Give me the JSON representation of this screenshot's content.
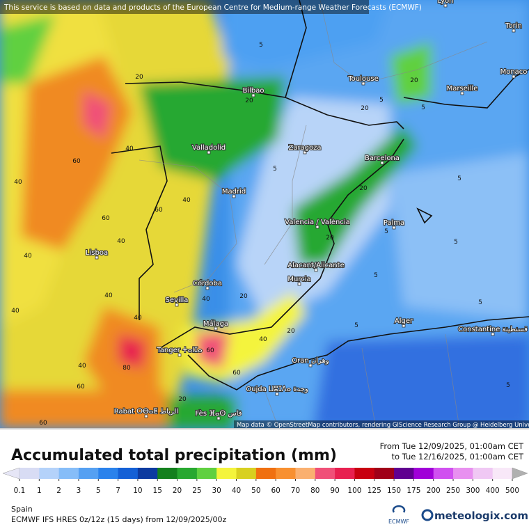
{
  "notice": "This service is based on data and products of the European Centre for Medium-range Weather Forecasts (ECMWF)",
  "attribution": "Map data © OpenStreetMap contributors, rendering GIScience Research Group @ Heidelberg University",
  "cities": [
    "Lyon",
    "Torin",
    "Monaco",
    "Toulouse",
    "Marseille",
    "Bilbao",
    "Valladolid",
    "Zaragoza",
    "Barcelona",
    "Madrid",
    "Valencia / València",
    "Palma",
    "Lisboa",
    "Alacant/Alicante",
    "Murcia",
    "Córdoba",
    "Sevilla",
    "Málaga",
    "Tanger ⵜⴰⵏⵊⴰ",
    "Oran وهران",
    "Alger",
    "Constantine قسنطينة",
    "Oujda ⵡⵓⵊⴷⴰ وجدة",
    "Rabat ⵔⴱⴰⵟ الرباط",
    "Fès ⴼⴰⵙ فاس"
  ],
  "contour_labels": [
    5,
    20,
    20,
    40,
    60,
    40,
    60,
    40,
    40,
    60,
    40,
    5,
    5,
    20,
    20,
    5,
    5,
    5,
    20,
    5,
    5,
    40,
    80,
    40,
    60,
    60,
    40,
    20,
    5,
    5,
    20,
    40,
    40,
    20,
    60,
    60,
    5,
    20,
    40
  ],
  "title": "Accumulated total precipitation (mm)",
  "period_from": "From Tue 12/09/2025, 01:00am CET",
  "period_to": "to Tue 12/16/2025, 01:00am CET",
  "legend": {
    "values": [
      0.1,
      1,
      2,
      3,
      5,
      7,
      10,
      15,
      20,
      25,
      30,
      40,
      50,
      60,
      70,
      80,
      90,
      100,
      125,
      150,
      175,
      200,
      250,
      300,
      400,
      500
    ],
    "colors": [
      "#e6e6f6",
      "#d8dcf4",
      "#b4d2fa",
      "#86bdf8",
      "#55a0f2",
      "#2a82ec",
      "#1460d6",
      "#0c3aa0",
      "#14801e",
      "#28a830",
      "#60d040",
      "#f4f43c",
      "#d8d020",
      "#f07010",
      "#f89030",
      "#fab070",
      "#f05078",
      "#e82050",
      "#c80010",
      "#a00018",
      "#600090",
      "#a000d8",
      "#d050f0",
      "#e890f0",
      "#f0c8f4",
      "#f8e8f8",
      "#b0b0b0"
    ]
  },
  "region": "Spain",
  "model": "ECMWF IFS HRES 0z/12z (15 days) from  12/09/2025/00z",
  "ecmwf_logo": "ECMWF",
  "brand": "meteologix.com"
}
